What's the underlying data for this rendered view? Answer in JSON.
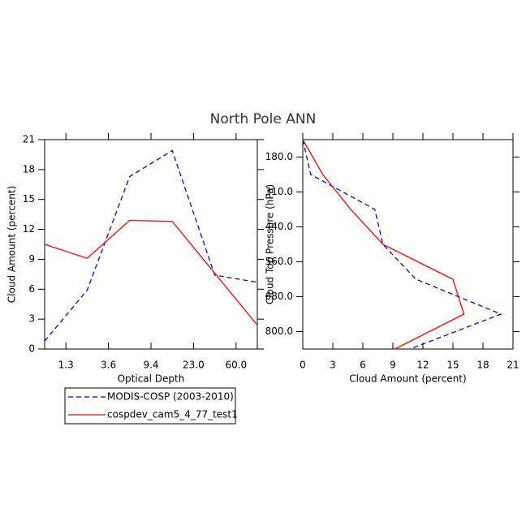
{
  "title": "North Pole ANN",
  "chart_data": [
    {
      "type": "line",
      "x_label": "Optical Depth",
      "y_label": "Cloud Amount (percent)",
      "x": [
        0,
        1,
        2,
        3,
        4,
        5
      ],
      "xlim": [
        0,
        5
      ],
      "xticks": [
        {
          "value": 0.5,
          "label": "1.3"
        },
        {
          "value": 1.5,
          "label": "3.6"
        },
        {
          "value": 2.5,
          "label": "9.4"
        },
        {
          "value": 3.5,
          "label": "23.0"
        },
        {
          "value": 4.5,
          "label": "60.0"
        }
      ],
      "ylim": [
        0,
        21
      ],
      "yticks": [
        0,
        3,
        6,
        9,
        12,
        15,
        18,
        21
      ],
      "series": [
        {
          "name": "MODIS-COSP (2003-2010)",
          "color": "#0000ff",
          "dash": true,
          "values": [
            0.8,
            5.9,
            17.3,
            19.9,
            7.4,
            6.7
          ]
        },
        {
          "name": "cospdev_cam5_4_77_test1",
          "color": "#ff0000",
          "dash": false,
          "values": [
            10.5,
            9.1,
            12.9,
            12.8,
            7.6,
            2.4
          ]
        }
      ]
    },
    {
      "type": "line-horizontal",
      "x_label": "Cloud Amount (percent)",
      "y_label": "Cloud Top Pressure (hPa)",
      "y": [
        0,
        1,
        2,
        3,
        4,
        5,
        6
      ],
      "ylim": [
        0,
        6
      ],
      "yticks": [
        {
          "value": 0.5,
          "label": "180.0"
        },
        {
          "value": 1.5,
          "label": "310.0"
        },
        {
          "value": 2.5,
          "label": "440.0"
        },
        {
          "value": 3.5,
          "label": "560.0"
        },
        {
          "value": 4.5,
          "label": "680.0"
        },
        {
          "value": 5.5,
          "label": "800.0"
        }
      ],
      "xlim": [
        0,
        21
      ],
      "xticks": [
        0,
        3,
        6,
        9,
        12,
        15,
        18,
        21
      ],
      "series": [
        {
          "color": "#0000ff",
          "dash": true,
          "values": [
            0,
            0.8,
            7.2,
            8.0,
            11.3,
            19.8,
            10.7
          ]
        },
        {
          "color": "#ff0000",
          "dash": false,
          "values": [
            0,
            2.0,
            4.8,
            8.0,
            15.0,
            16.1,
            9.2
          ]
        }
      ]
    }
  ]
}
